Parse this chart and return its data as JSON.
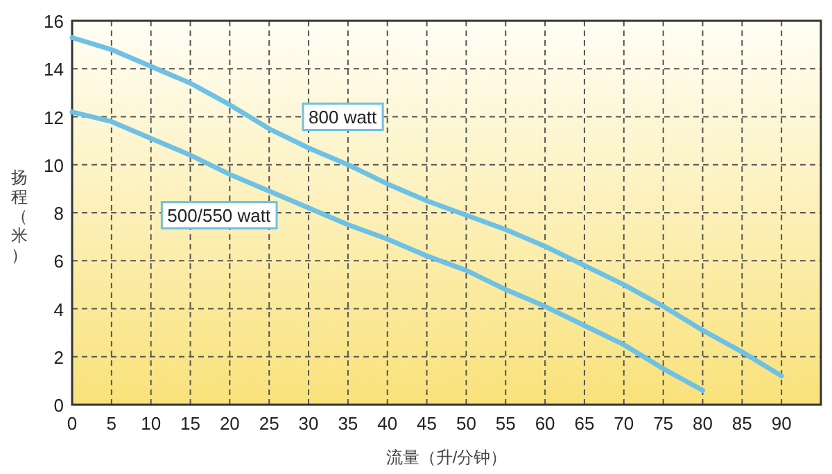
{
  "chart_data": {
    "type": "line",
    "xlabel": "流量（升/分钟）",
    "ylabel": "扬程（米）",
    "xlim": [
      0,
      95
    ],
    "xticks": [
      0,
      5,
      10,
      15,
      20,
      25,
      30,
      35,
      40,
      45,
      50,
      55,
      60,
      65,
      70,
      75,
      80,
      85,
      90
    ],
    "ylim": [
      0,
      16
    ],
    "yticks": [
      0,
      2,
      4,
      6,
      8,
      10,
      12,
      14,
      16
    ],
    "grid": true,
    "line_style": "solid",
    "marker": "none",
    "series": [
      {
        "name": "800 watt",
        "color": "#6ec1e4",
        "x": [
          0,
          5,
          10,
          15,
          20,
          25,
          30,
          35,
          40,
          45,
          50,
          55,
          60,
          65,
          70,
          75,
          80,
          85,
          90
        ],
        "values": [
          15.3,
          14.8,
          14.1,
          13.4,
          12.5,
          11.5,
          10.7,
          10.0,
          9.2,
          8.5,
          7.9,
          7.3,
          6.6,
          5.8,
          5.0,
          4.1,
          3.1,
          2.2,
          1.2
        ]
      },
      {
        "name": "500/550 watt",
        "color": "#6ec1e4",
        "x": [
          0,
          5,
          10,
          15,
          20,
          25,
          30,
          35,
          40,
          45,
          50,
          55,
          60,
          65,
          70,
          75,
          80
        ],
        "values": [
          12.2,
          11.8,
          11.1,
          10.4,
          9.6,
          8.9,
          8.2,
          7.5,
          6.9,
          6.2,
          5.6,
          4.8,
          4.1,
          3.3,
          2.5,
          1.5,
          0.6
        ]
      }
    ]
  }
}
